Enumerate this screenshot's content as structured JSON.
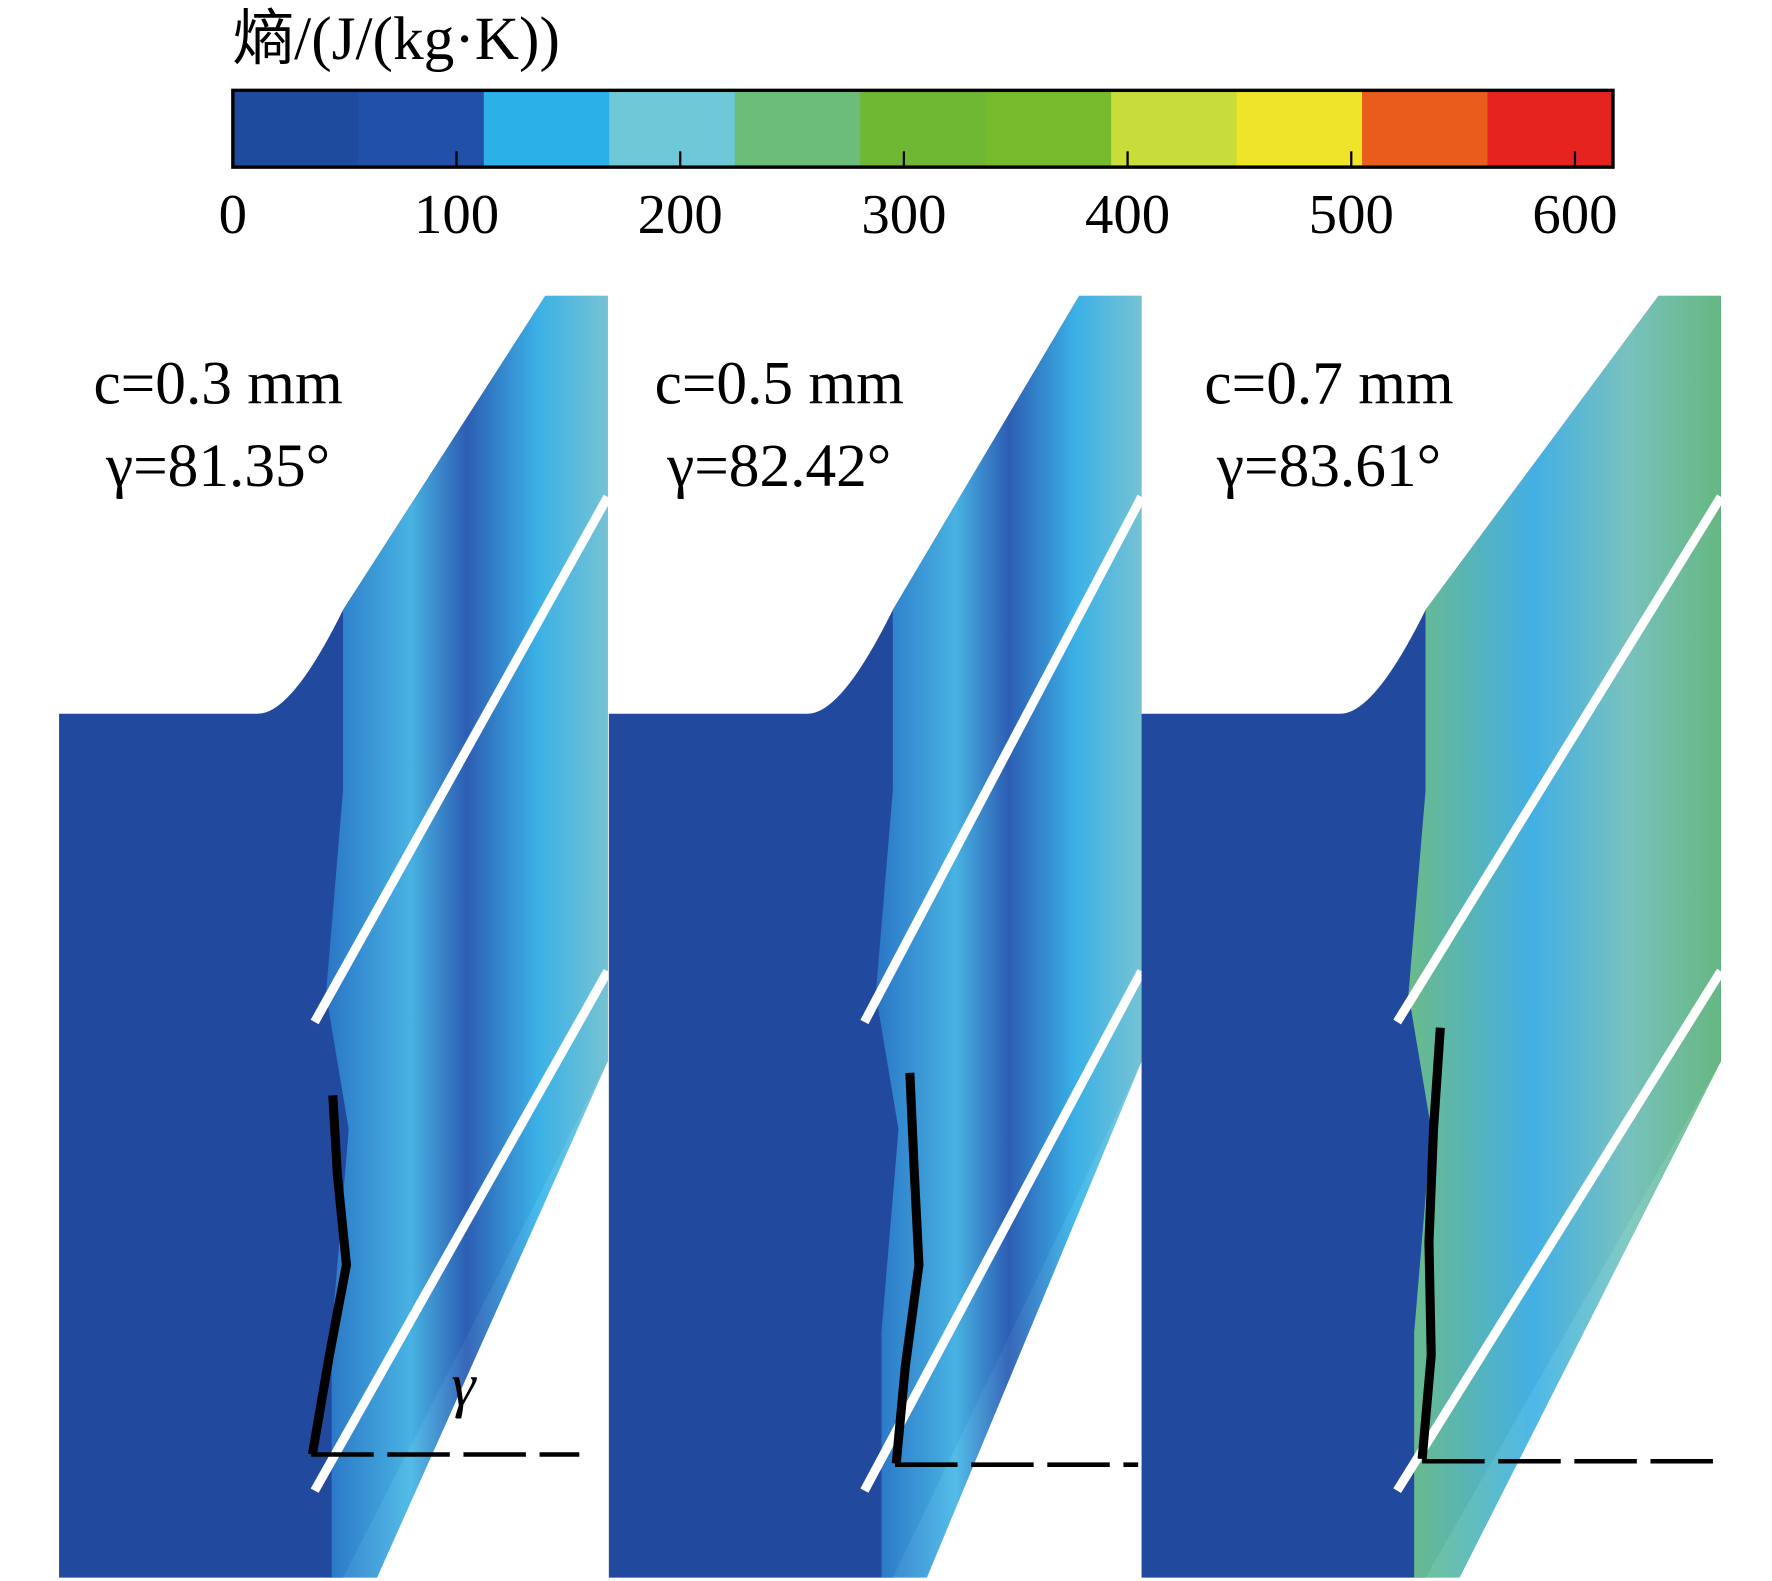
{
  "chart_data": {
    "type": "contour",
    "colorbar": {
      "title": "熵/(J/(kg·K))",
      "lim": [
        0,
        617
      ],
      "ticks": [
        0,
        100,
        200,
        300,
        400,
        500,
        600
      ],
      "colors": [
        "#1f4b9e",
        "#2050a8",
        "#2bb0e8",
        "#6fc8d8",
        "#6cbd7a",
        "#6fb834",
        "#76bb2c",
        "#c8dc3a",
        "#f0e42a",
        "#ea5c1c",
        "#e52420"
      ]
    },
    "panels": [
      {
        "c_label": "c=0.3 mm",
        "gamma_label": "γ=81.35°"
      },
      {
        "c_label": "c=0.5 mm",
        "gamma_label": "γ=82.42°"
      },
      {
        "c_label": "c=0.7 mm",
        "gamma_label": "γ=83.61°"
      }
    ],
    "angle_symbol": "γ"
  }
}
